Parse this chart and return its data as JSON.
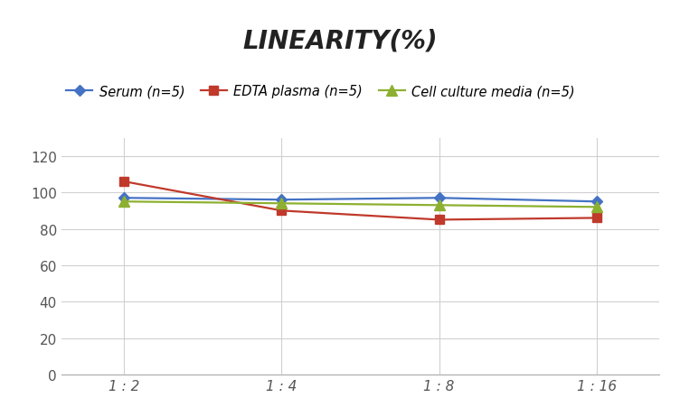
{
  "title": "LINEARITY(%)",
  "x_labels": [
    "1 : 2",
    "1 : 4",
    "1 : 8",
    "1 : 16"
  ],
  "x_positions": [
    0,
    1,
    2,
    3
  ],
  "series": [
    {
      "label": "Serum (n=5)",
      "values": [
        97,
        96,
        97,
        95
      ],
      "color": "#4472C4",
      "marker": "D",
      "marker_size": 6,
      "linewidth": 1.6
    },
    {
      "label": "EDTA plasma (n=5)",
      "values": [
        106,
        90,
        85,
        86
      ],
      "color": "#C0392B",
      "marker": "s",
      "marker_size": 7,
      "linewidth": 1.6
    },
    {
      "label": "Cell culture media (n=5)",
      "values": [
        95,
        94,
        93,
        92
      ],
      "color": "#8DB030",
      "marker": "^",
      "marker_size": 8,
      "linewidth": 1.6
    }
  ],
  "ylim": [
    0,
    130
  ],
  "yticks": [
    0,
    20,
    40,
    60,
    80,
    100,
    120
  ],
  "background_color": "#FFFFFF",
  "grid_color": "#D0D0D0",
  "title_fontsize": 20,
  "legend_fontsize": 10.5,
  "tick_fontsize": 11
}
